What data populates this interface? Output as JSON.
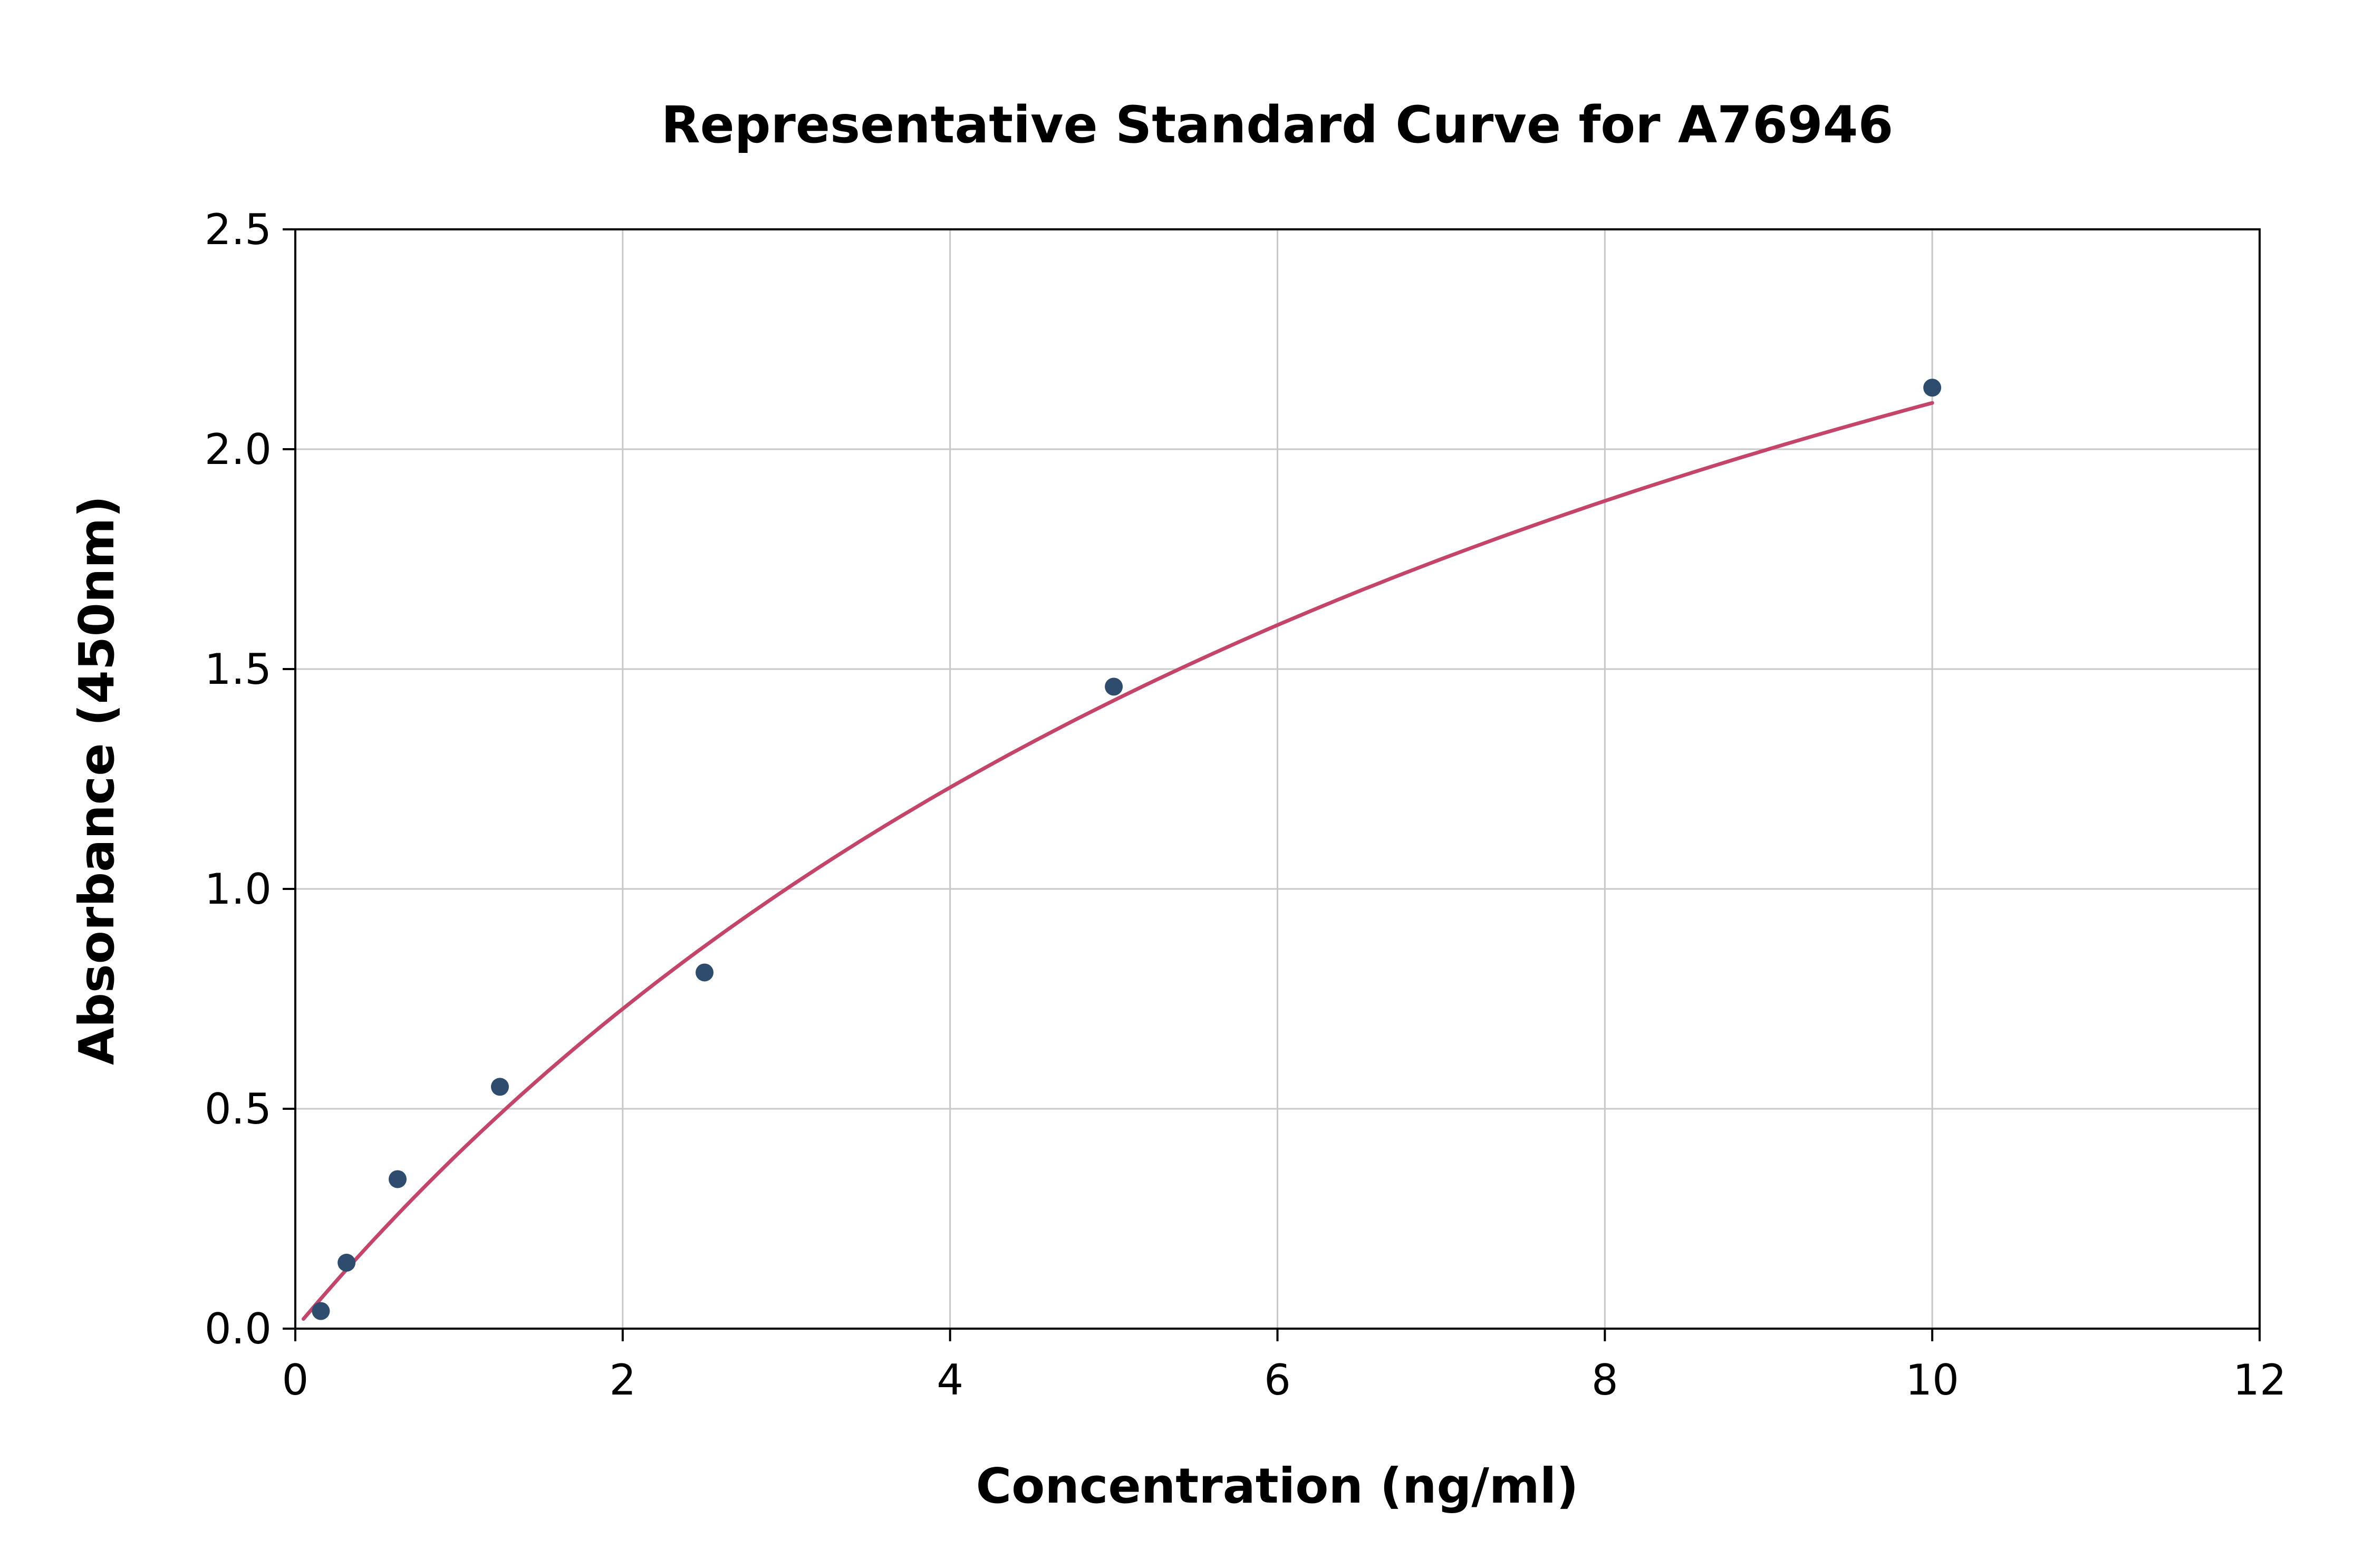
{
  "chart_data": {
    "type": "scatter",
    "title": "Representative Standard Curve for A76946",
    "xlabel": "Concentration (ng/ml)",
    "ylabel": "Absorbance (450nm)",
    "xlim": [
      0,
      12
    ],
    "ylim": [
      0,
      2.5
    ],
    "xticks": [
      0,
      2,
      4,
      6,
      8,
      10,
      12
    ],
    "xtick_labels": [
      "0",
      "2",
      "4",
      "6",
      "8",
      "10",
      "12"
    ],
    "yticks": [
      0.0,
      0.5,
      1.0,
      1.5,
      2.0,
      2.5
    ],
    "ytick_labels": [
      "0.0",
      "0.5",
      "1.0",
      "1.5",
      "2.0",
      "2.5"
    ],
    "grid": true,
    "legend": "none",
    "points": {
      "x": [
        0.156,
        0.313,
        0.625,
        1.25,
        2.5,
        5.0,
        10.0
      ],
      "y": [
        0.04,
        0.15,
        0.34,
        0.55,
        0.81,
        1.46,
        2.14
      ]
    },
    "fit_curve": {
      "model": "y = a*x/(b+x)",
      "a": 4.0,
      "b": 9.0,
      "x_start": 0.05,
      "x_end": 10.0
    },
    "colors": {
      "point": "#2e4d6e",
      "curve": "#c44569",
      "grid": "#c8c8c8",
      "axis": "#000000",
      "background": "#ffffff"
    }
  }
}
